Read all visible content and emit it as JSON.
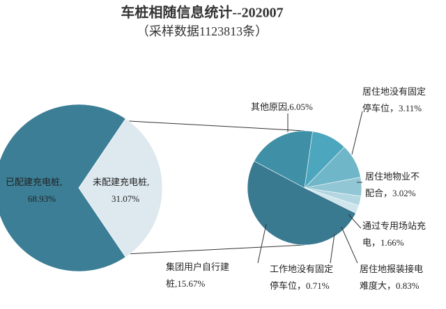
{
  "chart_data": [
    {
      "type": "pie",
      "title": "车桩相随信息统计--202007",
      "subtitle": "（采样数据1123813条）",
      "categories": [
        [
          "已配建充电桩,"
        ],
        [
          "未配建充电桩,"
        ]
      ],
      "values": [
        68.93,
        31.07
      ],
      "value_labels": [
        "68.93%",
        "31.07%"
      ],
      "colors": [
        "#3b7e95",
        "#dde9ef"
      ]
    },
    {
      "type": "pie",
      "categories": [
        [
          "其他原因,"
        ],
        [
          "居住地没有固定",
          "停车位，"
        ],
        [
          "居住地物业不",
          "配合，"
        ],
        [
          "通过专用场站充",
          "电，"
        ],
        [
          "居住地报装接电",
          "难度大，"
        ],
        [
          "工作地没有固定",
          "停车位，"
        ],
        [
          "集团用户自行建",
          "桩,"
        ]
      ],
      "values": [
        6.05,
        3.11,
        3.02,
        1.66,
        0.83,
        0.71,
        15.67
      ],
      "value_labels": [
        "6.05%",
        "3.11%",
        "3.02%",
        "1.66%",
        "0.83%",
        "0.71%",
        "15.67%"
      ],
      "colors": [
        "#3f8fa6",
        "#4ba6be",
        "#70b6c9",
        "#91c6d4",
        "#b2d7e1",
        "#cfe5ec",
        "#3a7a91"
      ]
    }
  ]
}
